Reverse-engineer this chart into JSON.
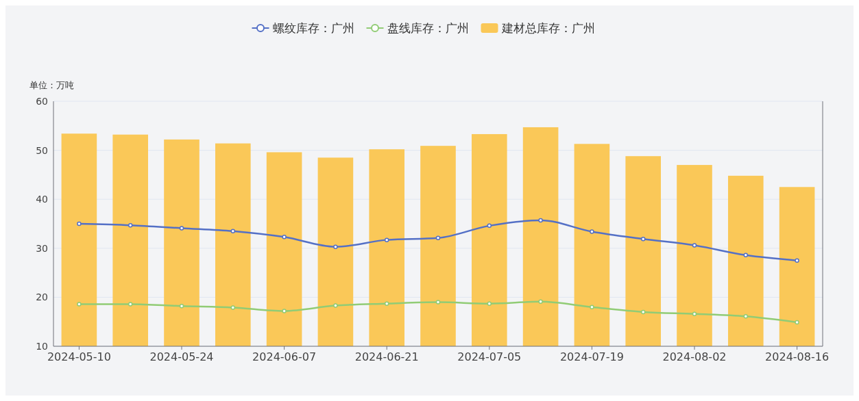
{
  "chart_data": {
    "type": "bar",
    "ylabel": "单位：万吨",
    "x": [
      "2024-05-10",
      "2024-05-17",
      "2024-05-24",
      "2024-05-31",
      "2024-06-07",
      "2024-06-14",
      "2024-06-21",
      "2024-06-28",
      "2024-07-05",
      "2024-07-12",
      "2024-07-19",
      "2024-07-26",
      "2024-08-02",
      "2024-08-09",
      "2024-08-16"
    ],
    "xlim": [
      "2024-05-06T12:00",
      "2024-08-19T12:00"
    ],
    "xticks": [
      "2024-05-10",
      "2024-05-24",
      "2024-06-07",
      "2024-06-21",
      "2024-07-05",
      "2024-07-19",
      "2024-08-02",
      "2024-08-16"
    ],
    "ylim": [
      10,
      60
    ],
    "yticks": [
      10,
      20,
      30,
      40,
      50,
      60
    ],
    "grid": "y",
    "legend": "top",
    "marker": "circle",
    "line_style": "solid",
    "series": [
      {
        "name": "螺纹库存：广州",
        "type": "line",
        "color": "#5470c6",
        "values": [
          35.0,
          34.7,
          34.1,
          33.5,
          32.3,
          30.3,
          31.7,
          32.1,
          34.6,
          35.7,
          33.4,
          31.9,
          30.6,
          28.6,
          27.5
        ]
      },
      {
        "name": "盘线库存：广州",
        "type": "line",
        "color": "#91cc75",
        "values": [
          18.6,
          18.6,
          18.2,
          17.9,
          17.2,
          18.3,
          18.7,
          19.0,
          18.7,
          19.1,
          18.0,
          17.0,
          16.6,
          16.1,
          14.9
        ]
      },
      {
        "name": "建材总库存：广州",
        "color": "#fac858",
        "values": [
          53.4,
          53.2,
          52.2,
          51.4,
          49.6,
          48.5,
          50.2,
          50.9,
          53.3,
          54.7,
          51.3,
          48.8,
          47.0,
          44.8,
          42.5
        ]
      }
    ]
  }
}
